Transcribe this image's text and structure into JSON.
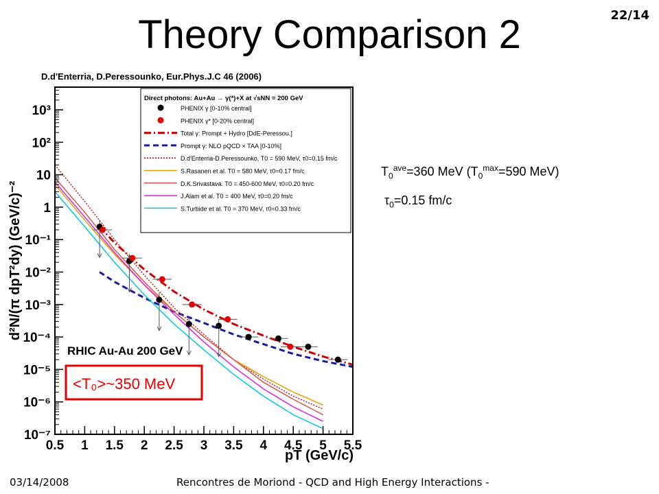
{
  "slide": {
    "title": "Theory Comparison 2",
    "page": "22/14",
    "citation": "D.d'Enterria, D.Peressounko, Eur.Phys.J.C 46 (2006)",
    "footer_date": "03/14/2008",
    "footer_text": "Rencontres de Moriond - QCD and High Energy Interactions -"
  },
  "info": {
    "line1": {
      "t": "T",
      "s0": "0",
      "ave": "ave",
      "mid": "=360 MeV (T",
      "s1": "0",
      "max": "max",
      "end": "=590 MeV)"
    },
    "line2": {
      "tau": "τ",
      "s0": "0",
      "rest": "=0.15 fm/c"
    }
  },
  "chart_data": {
    "type": "scatter",
    "title": "Direct photons: Au+Au → γ(*)+X at √sNN = 200 GeV",
    "xlabel": "pT (GeV/c)",
    "ylabel": "d²N/(π dpT²dy) (GeV/c)⁻²",
    "xlim": [
      0.5,
      5.5
    ],
    "ylim": [
      1e-07,
      5000
    ],
    "yscale": "log",
    "x_ticks": [
      "0.5",
      "1",
      "1.5",
      "2",
      "2.5",
      "3",
      "3.5",
      "4",
      "4.5",
      "5",
      "5.5"
    ],
    "y_ticks": [
      "10⁻⁷",
      "10⁻⁶",
      "10⁻⁵",
      "10⁻⁴",
      "10⁻³",
      "10⁻²",
      "10⁻¹",
      "1",
      "10",
      "10²",
      "10³"
    ],
    "grid": false,
    "legend_position": "top-right",
    "annotations": [
      "RHIC Au-Au 200 GeV",
      "<T₀>~350 MeV"
    ],
    "series": [
      {
        "name": "PHENIX γ [0-10% central]",
        "kind": "points",
        "color": "#000000",
        "x": [
          1.25,
          1.75,
          2.25,
          2.75,
          3.25,
          3.75,
          4.25,
          4.75,
          5.25
        ],
        "y": [
          0.25,
          0.022,
          0.0014,
          0.00025,
          0.00022,
          0.0001,
          9e-05,
          5e-05,
          2e-05
        ],
        "upper_limit": [
          true,
          true,
          true,
          true,
          true,
          false,
          false,
          false,
          false
        ]
      },
      {
        "name": "PHENIX γ* [0-20% central]",
        "kind": "points",
        "color": "#e60000",
        "x": [
          1.3,
          1.8,
          2.3,
          2.8,
          3.4,
          4.45
        ],
        "y": [
          0.2,
          0.027,
          0.006,
          0.001,
          0.00035,
          5e-05
        ]
      },
      {
        "name": "Total γ: Prompt + Hydro [DdE-Peressou.]",
        "kind": "line",
        "color": "#cc0000",
        "dash": "10,4,2,4",
        "width": 3,
        "x": [
          1.25,
          1.5,
          2,
          2.5,
          3,
          3.5,
          4,
          4.5,
          5,
          5.5
        ],
        "y": [
          0.25,
          0.08,
          0.012,
          0.0025,
          0.0007,
          0.00025,
          0.00011,
          5e-05,
          2.5e-05,
          1.4e-05
        ]
      },
      {
        "name": "Prompt γ: NLO pQCD × TAA [0-10%]",
        "kind": "line",
        "color": "#1a1aa6",
        "dash": "8,5",
        "width": 3,
        "x": [
          1.25,
          1.5,
          2,
          2.5,
          3,
          3.5,
          4,
          4.5,
          5,
          5.5
        ],
        "y": [
          0.01,
          0.005,
          0.0016,
          0.0006,
          0.00027,
          0.00012,
          6e-05,
          3e-05,
          1.8e-05,
          1.2e-05
        ]
      },
      {
        "name": "D.d'Enterria-D.Peressounko, T0 = 590 MeV, τ0=0.15 fm/c",
        "kind": "line",
        "color": "#b22222",
        "dash": "2,2",
        "width": 1.5,
        "x": [
          0.5,
          1,
          1.5,
          2,
          2.5,
          3,
          3.5,
          4,
          4.5,
          5
        ],
        "y": [
          20,
          1.5,
          0.1,
          0.008,
          0.0008,
          0.00012,
          2e-05,
          5e-06,
          1.5e-06,
          6e-07
        ]
      },
      {
        "name": "S.Rasanen et al. T0 = 580 MeV, τ0=0.17 fm/c",
        "kind": "line",
        "color": "#e6a100",
        "width": 1.5,
        "x": [
          0.5,
          1,
          1.5,
          2,
          2.5,
          3,
          3.5,
          4,
          4.5,
          5
        ],
        "y": [
          5,
          0.4,
          0.035,
          0.004,
          0.0006,
          0.0001,
          2e-05,
          6e-06,
          2e-06,
          8e-07
        ]
      },
      {
        "name": "D.K.Srivastava. T0 = 450-600 MeV, τ0=0.20 fm/c",
        "kind": "line",
        "color": "#d9534f",
        "width": 1.5,
        "x": [
          0.5,
          1,
          1.5,
          2,
          2.5,
          3,
          3.5,
          4,
          4.5,
          5
        ],
        "y": [
          8,
          0.7,
          0.05,
          0.005,
          0.0006,
          0.0001,
          2e-05,
          4e-06,
          1.2e-06,
          4e-07
        ]
      },
      {
        "name": "J.Alam et al. T0 = 400 MeV, τ0=0.20 fm/c",
        "kind": "line",
        "color": "#e020e0",
        "width": 1.5,
        "x": [
          0.5,
          1,
          1.5,
          2,
          2.5,
          3,
          3.5,
          4,
          4.5,
          5
        ],
        "y": [
          6,
          0.5,
          0.04,
          0.004,
          0.0005,
          7e-05,
          1.2e-05,
          2.5e-06,
          7e-07,
          2.5e-07
        ]
      },
      {
        "name": "S.Turbide et al. T0 = 370 MeV, τ0=0.33 fm/c",
        "kind": "line",
        "color": "#00c8e0",
        "width": 1.5,
        "x": [
          0.5,
          1,
          1.5,
          2,
          2.5,
          3,
          3.5,
          4,
          4.5,
          5
        ],
        "y": [
          3,
          0.25,
          0.02,
          0.002,
          0.00025,
          4e-05,
          7e-06,
          1.5e-06,
          4e-07,
          1.5e-07
        ]
      }
    ]
  }
}
